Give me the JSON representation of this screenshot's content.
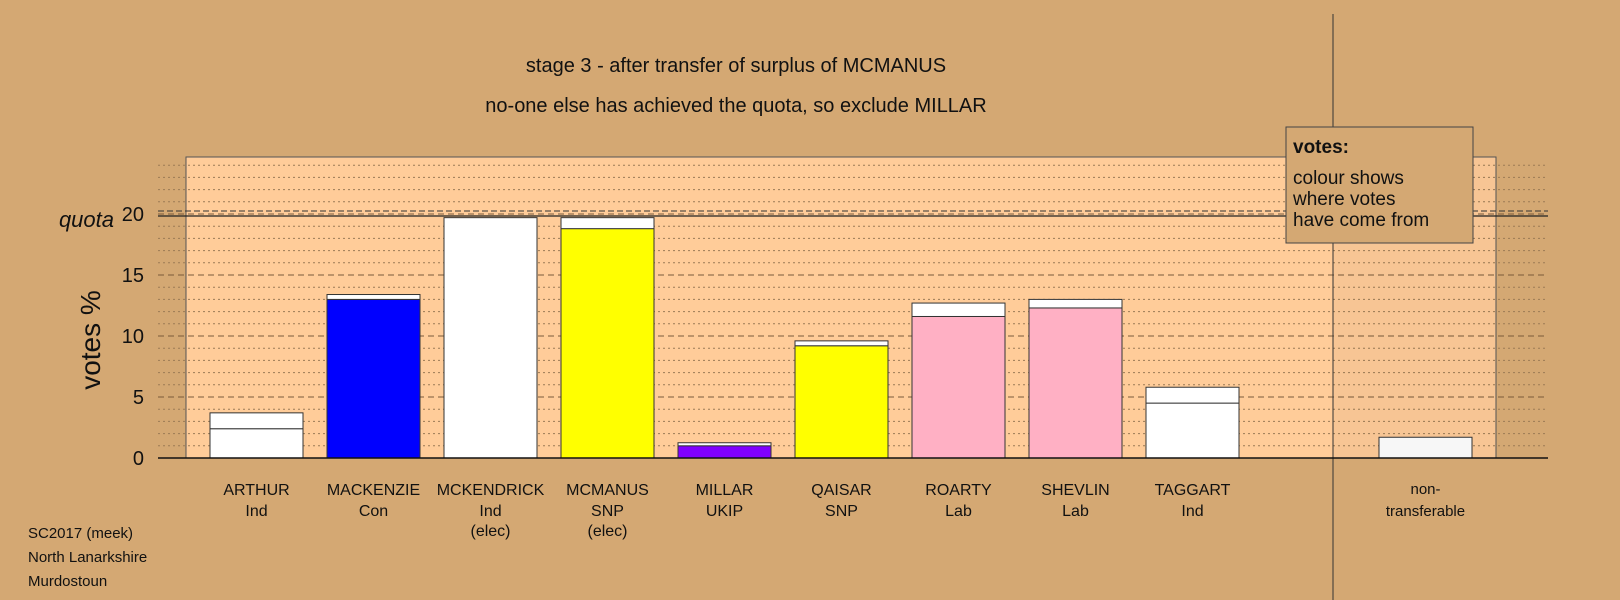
{
  "chart_data": {
    "type": "bar",
    "title": "stage 3 - after transfer of surplus of MCMANUS",
    "subtitle": "no-one else has achieved the quota, so exclude MILLAR",
    "ylabel": "votes %",
    "quota_label": "quota",
    "quota": 20,
    "ylim": [
      0,
      24.6
    ],
    "yticks": [
      0,
      5,
      10,
      15,
      20
    ],
    "grid": true,
    "legend": {
      "title": "votes:",
      "lines": [
        "colour shows",
        "where votes",
        "have come from"
      ]
    },
    "candidates": [
      {
        "name": "ARTHUR",
        "party": "Ind",
        "note": "",
        "segments": [
          {
            "value": 2.4,
            "color": "#FFFFFF"
          },
          {
            "value": 1.3,
            "color": "#FFFFFF"
          }
        ]
      },
      {
        "name": "MACKENZIE",
        "party": "Con",
        "note": "",
        "segments": [
          {
            "value": 13.0,
            "color": "#0000FF"
          },
          {
            "value": 0.4,
            "color": "#FFFFFF"
          }
        ]
      },
      {
        "name": "MCKENDRICK",
        "party": "Ind",
        "note": "(elec)",
        "segments": [
          {
            "value": 19.7,
            "color": "#FFFFFF"
          }
        ]
      },
      {
        "name": "MCMANUS",
        "party": "SNP",
        "note": "(elec)",
        "segments": [
          {
            "value": 18.8,
            "color": "#FFFF00"
          },
          {
            "value": 0.9,
            "color": "#FFFFFF"
          }
        ]
      },
      {
        "name": "MILLAR",
        "party": "UKIP",
        "note": "",
        "segments": [
          {
            "value": 1.0,
            "color": "#8000FF"
          },
          {
            "value": 0.25,
            "color": "#FFFFFF"
          }
        ]
      },
      {
        "name": "QAISAR",
        "party": "SNP",
        "note": "",
        "segments": [
          {
            "value": 9.2,
            "color": "#FFFF00"
          },
          {
            "value": 0.4,
            "color": "#FFFFFF"
          }
        ]
      },
      {
        "name": "ROARTY",
        "party": "Lab",
        "note": "",
        "segments": [
          {
            "value": 11.6,
            "color": "#FFB0C4"
          },
          {
            "value": 1.1,
            "color": "#FFFFFF"
          }
        ]
      },
      {
        "name": "SHEVLIN",
        "party": "Lab",
        "note": "",
        "segments": [
          {
            "value": 12.3,
            "color": "#FFB0C4"
          },
          {
            "value": 0.7,
            "color": "#FFFFFF"
          }
        ]
      },
      {
        "name": "TAGGART",
        "party": "Ind",
        "note": "",
        "segments": [
          {
            "value": 4.5,
            "color": "#FFFFFF"
          },
          {
            "value": 1.3,
            "color": "#FFFFFF"
          }
        ]
      }
    ],
    "nontransferable": {
      "name": "non-",
      "party": "transferable",
      "value": 1.7,
      "color": "#FFFFFF"
    }
  },
  "footer": {
    "line1": "SC2017 (meek)",
    "line2": "North Lanarkshire",
    "line3": "Murdostoun"
  }
}
